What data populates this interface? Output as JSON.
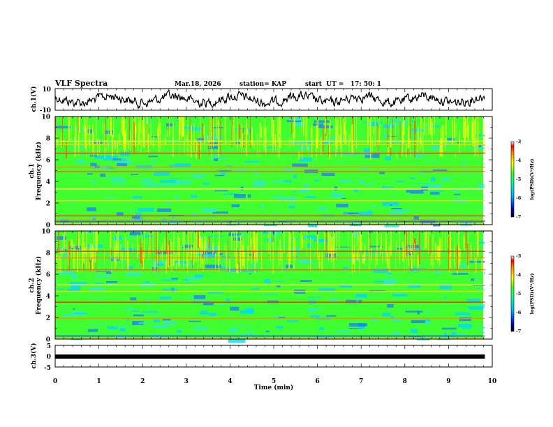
{
  "header": {
    "title": "VLF Spectra",
    "date": "Mar.18, 2026",
    "station": "station= KAP",
    "start_time": "start  UT =   17: 50: 1"
  },
  "colorbar": {
    "label": "log(PSD)(V²/Hz)",
    "ticks": [
      "-3",
      "-4",
      "-5",
      "-6",
      "-7"
    ]
  },
  "chart_data": [
    {
      "type": "line",
      "name": "ch1-waveform",
      "ylabel": "ch.1(V)",
      "ylim": [
        -10,
        10
      ],
      "yticks": [
        "10",
        "-10"
      ],
      "xlim": [
        0,
        10
      ],
      "trace_extent_min": 9.83
    },
    {
      "type": "heatmap",
      "name": "ch1-spectrogram",
      "ylabel": "ch.1\nFrequency (kHz)",
      "ylabel_line1": "ch.1",
      "ylabel_line2": "Frequency (kHz)",
      "ylim": [
        0,
        10
      ],
      "yticks": [
        "0",
        "2",
        "4",
        "6",
        "8",
        "10"
      ],
      "xlim": [
        0,
        10
      ],
      "color_range": [
        -7,
        -3
      ],
      "notable_bands_khz": [
        0.4,
        0.8,
        2.2,
        3.3,
        4.9,
        5.3,
        6.6,
        7.4,
        7.7
      ]
    },
    {
      "type": "heatmap",
      "name": "ch2-spectrogram",
      "ylabel_line1": "ch.2",
      "ylabel_line2": "Frequency (kHz)",
      "ylim": [
        0,
        10
      ],
      "yticks": [
        "0",
        "2",
        "4",
        "6",
        "8",
        "10"
      ],
      "xlim": [
        0,
        10
      ],
      "color_range": [
        -7,
        -3
      ],
      "notable_bands_khz": [
        1.9,
        3.4,
        4.4,
        5.0,
        6.4,
        7.5,
        8.1
      ]
    },
    {
      "type": "line",
      "name": "ch3-waveform",
      "ylabel": "ch.3(V)",
      "ylim": [
        -5,
        5
      ],
      "yticks": [
        "5",
        "0",
        "-5"
      ],
      "xlim": [
        0,
        10
      ],
      "constant_value": -0.2
    }
  ],
  "xaxis": {
    "label": "Time (min)",
    "ticks": [
      "0",
      "1",
      "2",
      "3",
      "4",
      "5",
      "6",
      "7",
      "8",
      "9",
      "10"
    ]
  }
}
